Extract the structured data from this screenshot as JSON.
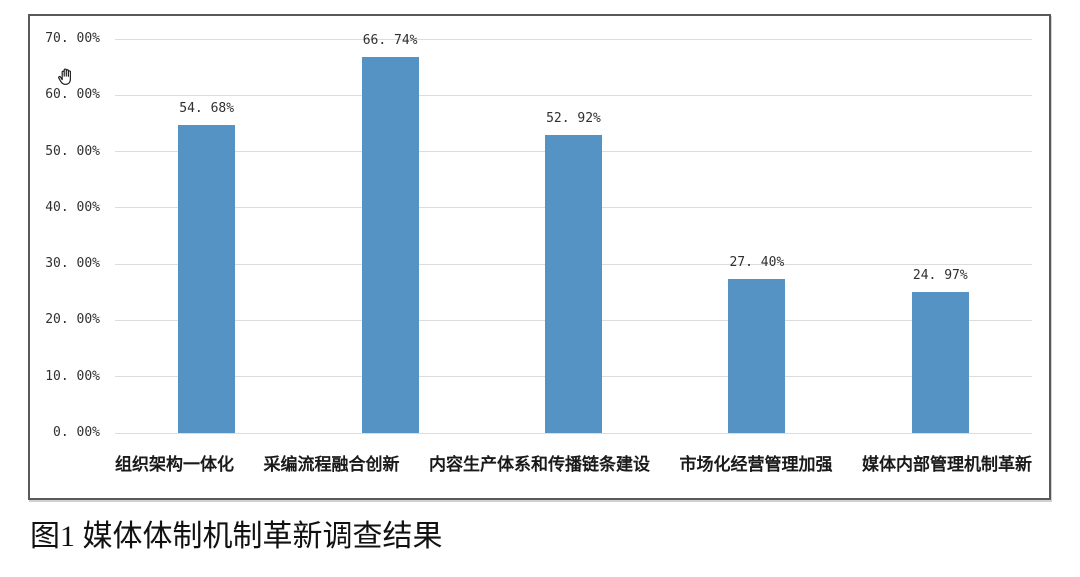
{
  "chart_data": {
    "type": "bar",
    "title": "",
    "categories": [
      "组织架构一体化",
      "采编流程融合创新",
      "内容生产体系和传播链条建设",
      "市场化经营管理加强",
      "媒体内部管理机制革新"
    ],
    "values": [
      54.68,
      66.74,
      52.92,
      27.4,
      24.97
    ],
    "data_labels": [
      "54. 68%",
      "66. 74%",
      "52. 92%",
      "27. 40%",
      "24. 97%"
    ],
    "y_ticks": [
      {
        "value": 0,
        "label": "0. 00%"
      },
      {
        "value": 10,
        "label": "10. 00%"
      },
      {
        "value": 20,
        "label": "20. 00%"
      },
      {
        "value": 30,
        "label": "30. 00%"
      },
      {
        "value": 40,
        "label": "40. 00%"
      },
      {
        "value": 50,
        "label": "50. 00%"
      },
      {
        "value": 60,
        "label": "60. 00%"
      },
      {
        "value": 70,
        "label": "70. 00%"
      }
    ],
    "xlabel": "",
    "ylabel": "",
    "ylim": [
      0,
      70
    ],
    "grid": true,
    "legend": false,
    "bar_color": "#5593c5"
  },
  "caption": "图1 媒体体制机制革新调查结果",
  "cursor": {
    "type": "open-hand-pan"
  },
  "colors": {
    "bar": "#5593c5",
    "gridline": "#dcdcdc",
    "frame_border": "#59595b",
    "tick_text": "#303030",
    "category_text": "#1a1a1a",
    "caption_text": "#111111",
    "background": "#ffffff"
  }
}
